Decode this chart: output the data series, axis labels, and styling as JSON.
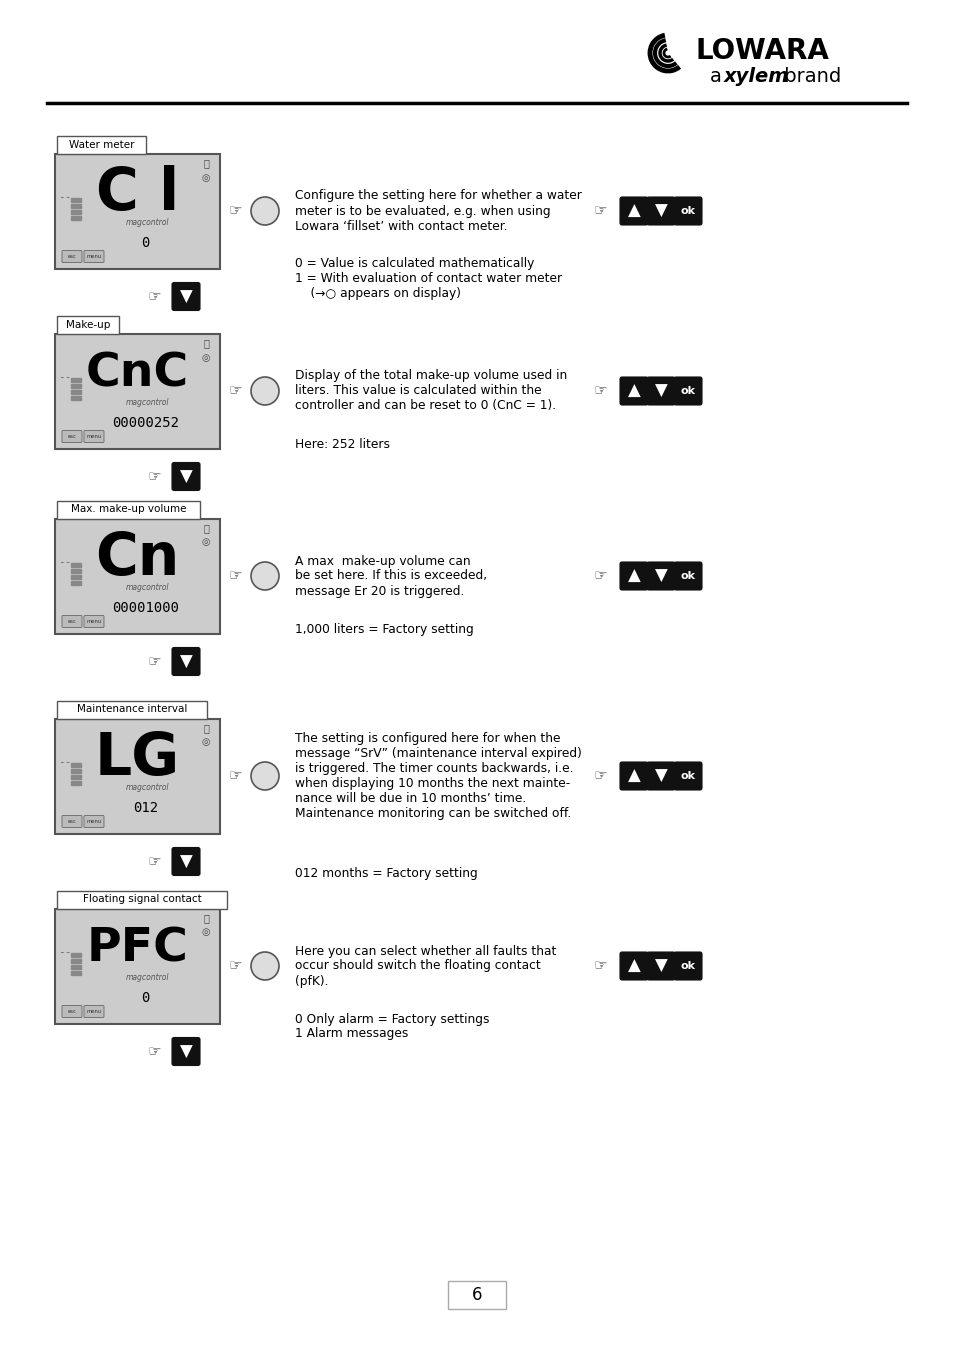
{
  "page_bg": "#ffffff",
  "page_number": "6",
  "sections": [
    {
      "label": "Water meter",
      "display_chars": "C l",
      "display_sub": "magcontrol",
      "display_value": "0",
      "desc_lines": [
        "Configure the setting here for whether a water",
        "meter is to be evaluated, e.g. when using",
        "Lowara ‘fillset’ with contact meter."
      ],
      "desc2_lines": [
        "0 = Value is calculated mathematically",
        "1 = With evaluation of contact water meter",
        "    (→○ appears on display)"
      ],
      "char_size": 42
    },
    {
      "label": "Make-up",
      "display_chars": "CnC",
      "display_sub": "magcontrol",
      "display_value": "00000252",
      "desc_lines": [
        "Display of the total make-up volume used in",
        "liters. This value is calculated within the",
        "controller and can be reset to 0 (CnC = 1)."
      ],
      "desc2_lines": [
        "Here: 252 liters"
      ],
      "char_size": 34
    },
    {
      "label": "Max. make-up volume",
      "display_chars": "Cn",
      "display_sub": "magcontrol",
      "display_value": "00001000",
      "desc_lines": [
        "A max  make-up volume can",
        "be set here. If this is exceeded,",
        "message Er 20 is triggered."
      ],
      "desc2_lines": [
        "1,000 liters = Factory setting"
      ],
      "char_size": 42
    },
    {
      "label": "Maintenance interval",
      "display_chars": "LG",
      "display_sub": "magcontrol",
      "display_value": "012",
      "desc_lines": [
        "The setting is configured here for when the",
        "message “SrV” (maintenance interval expired)",
        "is triggered. The timer counts backwards, i.e.",
        "when displaying 10 months the next mainte-",
        "nance will be due in 10 months’ time.",
        "Maintenance monitoring can be switched off."
      ],
      "desc2_lines": [
        "012 months = Factory setting"
      ],
      "char_size": 42
    },
    {
      "label": "Floating signal contact",
      "display_chars": "PFC",
      "display_sub": "magcontrol",
      "display_value": "0",
      "desc_lines": [
        "Here you can select whether all faults that",
        "occur should switch the floating contact",
        "(pfK)."
      ],
      "desc2_lines": [
        "0 Only alarm = Factory settings",
        "1 Alarm messages"
      ],
      "char_size": 34
    }
  ]
}
